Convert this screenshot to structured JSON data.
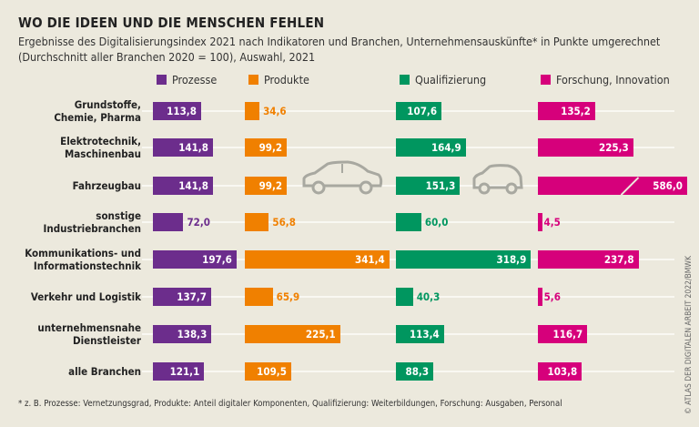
{
  "title": "WO DIE IDEEN UND DIE MENSCHEN FEHLEN",
  "subtitle": "Ergebnisse des Digitalisierungsindex 2021 nach Indikatoren und Branchen, Unternehmensauskünfte* in Punkte umgerechnet (Durchschnitt aller Branchen 2020 = 100), Auswahl, 2021",
  "footnote": "* z. B. Prozesse: Vernetzungsgrad, Produkte: Anteil digitaler Komponenten, Qualifizierung: Weiterbildungen, Forschung: Ausgaben, Personal",
  "copyright": "© ATLAS DER DIGITALEN ARBEIT 2022/BMWK",
  "icons": [
    "car-icon",
    "car-icon"
  ],
  "chart_data": {
    "type": "bar",
    "orientation": "horizontal",
    "categories": [
      "Grundstoffe, Chemie, Pharma",
      "Elektrotechnik, Maschinenbau",
      "Fahrzeugbau",
      "sonstige Industriebranchen",
      "Kommunikations- und Informationstechnik",
      "Verkehr und Logistik",
      "unternehmensnahe Dienstleister",
      "alle Branchen"
    ],
    "legend_position": "top",
    "grid": false,
    "note": "Fahrzeugbau Forschung, Innovation bar is truncated (axis break)",
    "series": [
      {
        "name": "Prozesse",
        "color": "#6c2d8c",
        "values": [
          113.8,
          141.8,
          141.8,
          72.0,
          197.6,
          137.7,
          138.3,
          121.1
        ],
        "labels": [
          "113,8",
          "141,8",
          "141,8",
          "72,0",
          "197,6",
          "137,7",
          "138,3",
          "121,1"
        ]
      },
      {
        "name": "Produkte",
        "color": "#f08000",
        "values": [
          34.6,
          99.2,
          99.2,
          56.8,
          341.4,
          65.9,
          225.1,
          109.5
        ],
        "labels": [
          "34,6",
          "99,2",
          "99,2",
          "56,8",
          "341,4",
          "65,9",
          "225,1",
          "109,5"
        ]
      },
      {
        "name": "Qualifizierung",
        "color": "#00965f",
        "values": [
          107.6,
          164.9,
          151.3,
          60.0,
          318.9,
          40.3,
          113.4,
          88.3
        ],
        "labels": [
          "107,6",
          "164,9",
          "151,3",
          "60,0",
          "318,9",
          "40,3",
          "113,4",
          "88,3"
        ]
      },
      {
        "name": "Forschung, Innovation",
        "color": "#d6007b",
        "values": [
          135.2,
          225.3,
          586.0,
          4.5,
          237.8,
          5.6,
          116.7,
          103.8
        ],
        "labels": [
          "135,2",
          "225,3",
          "586,0",
          "4,5",
          "237,8",
          "5,6",
          "116,7",
          "103,8"
        ]
      }
    ]
  }
}
